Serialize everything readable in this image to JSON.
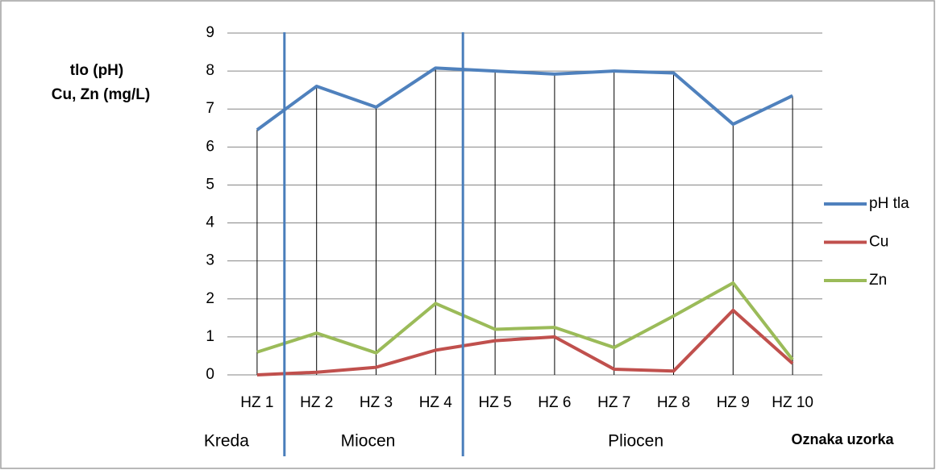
{
  "chart_data": {
    "type": "line",
    "y_label_lines": [
      "tlo (pH)",
      "Cu, Zn (mg/L)"
    ],
    "x_label": "Oznaka uzorka",
    "categories": [
      "HZ 1",
      "HZ 2",
      "HZ 3",
      "HZ 4",
      "HZ 5",
      "HZ 6",
      "HZ 7",
      "HZ 8",
      "HZ 9",
      "HZ 10"
    ],
    "series": [
      {
        "name": "pH tla",
        "color": "#4f81bd",
        "values": [
          6.45,
          7.6,
          7.05,
          8.08,
          8.0,
          7.92,
          8.0,
          7.95,
          6.6,
          7.35
        ]
      },
      {
        "name": "Cu",
        "color": "#c0504d",
        "values": [
          0,
          0.07,
          0.2,
          0.65,
          0.9,
          1.0,
          0.15,
          0.1,
          1.7,
          0.3
        ]
      },
      {
        "name": "Zn",
        "color": "#9bbb59",
        "values": [
          0.6,
          1.1,
          0.58,
          1.88,
          1.2,
          1.25,
          0.72,
          1.55,
          2.42,
          0.4
        ]
      }
    ],
    "periods": [
      {
        "label": "Kreda",
        "first": 0,
        "last": 0
      },
      {
        "label": "Miocen",
        "first": 1,
        "last": 3
      },
      {
        "label": "Pliocen",
        "first": 4,
        "last": 9
      }
    ],
    "period_divider_color": "#4a7ebb",
    "ylim": [
      0,
      9
    ],
    "yticks": [
      0,
      1,
      2,
      3,
      4,
      5,
      6,
      7,
      8,
      9
    ],
    "grid": true,
    "drop_lines": true,
    "legend": "right"
  }
}
